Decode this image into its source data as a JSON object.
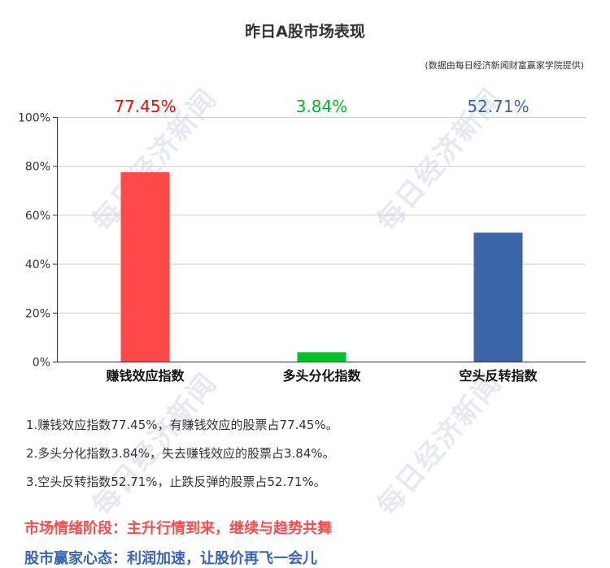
{
  "title": "昨日A股市场表现",
  "source_note": "(数据由每日经济新闻财富赢家学院提供)",
  "watermark": "每日经济新闻",
  "chart_data": {
    "type": "bar",
    "categories": [
      "赚钱效应指数",
      "多头分化指数",
      "空头反转指数"
    ],
    "values": [
      77.45,
      3.84,
      52.71
    ],
    "value_labels": [
      "77.45%",
      "3.84%",
      "52.71%"
    ],
    "colors": [
      "#ff4848",
      "#00c12b",
      "#3a64a8"
    ],
    "label_colors": [
      "#ff0000",
      "#00b82a",
      "#3a64a8"
    ],
    "ylim": [
      0,
      100
    ],
    "yticks": [
      0,
      20,
      40,
      60,
      80,
      100
    ],
    "ytick_labels": [
      "0%",
      "20%",
      "40%",
      "60%",
      "80%",
      "100%"
    ],
    "grid": true,
    "xlabel": "",
    "ylabel": ""
  },
  "notes": [
    "1.赚钱效应指数77.45%，有赚钱效应的股票占77.45%。",
    "2.多头分化指数3.84%，失去赚钱效应的股票占3.84%。",
    "3.空头反转指数52.71%，止跌反弹的股票占52.71%。"
  ],
  "market_stage": {
    "text": "市场情绪阶段：主升行情到来，继续与趋势共舞",
    "color": "#ff4a4a"
  },
  "investor_mood": {
    "text": "股市赢家心态：利润加速，让股价再飞一会儿",
    "color": "#3a64b8"
  }
}
